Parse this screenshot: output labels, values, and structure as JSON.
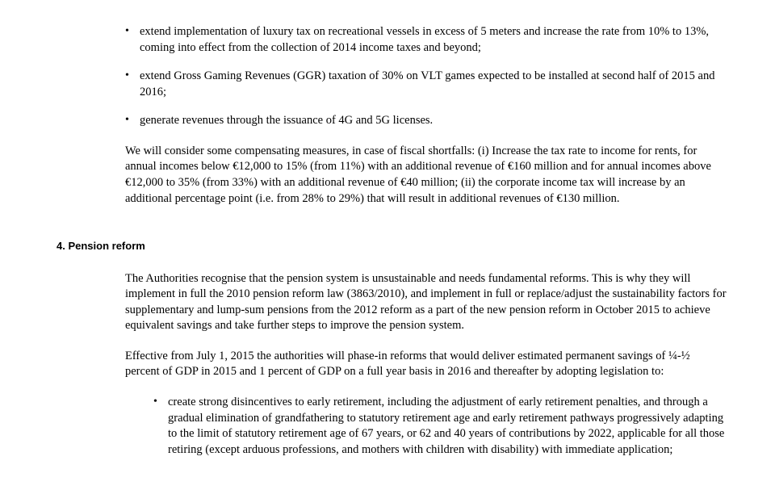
{
  "top_bullets": [
    "extend implementation of luxury tax on recreational vessels in excess of 5 meters and increase the rate from 10% to 13%, coming into effect from the collection of 2014 income taxes and beyond;",
    "extend Gross Gaming Revenues (GGR) taxation of 30% on VLT games expected to be installed at second half of 2015 and 2016;",
    "generate revenues through the issuance of 4G and 5G licenses."
  ],
  "compensating_para": "We will consider some compensating measures, in case of fiscal shortfalls: (i) Increase the tax rate to income for rents, for annual incomes below €12,000 to 15% (from 11%) with an additional revenue of €160 million and for annual incomes above €12,000 to 35% (from 33%) with an additional revenue of €40 million; (ii)  the corporate income tax will increase by an additional percentage point (i.e. from 28% to 29%) that will result in additional revenues of €130 million.",
  "section4": {
    "heading": "4. Pension reform",
    "para1": "The Authorities recognise that the pension system is unsustainable and needs fundamental reforms. This is why they will implement in full the 2010 pension reform law (3863/2010), and implement in full or replace/adjust the sustainability factors for supplementary and lump-sum pensions from the 2012 reform as a part of the new pension reform in October 2015 to achieve equivalent savings and take further steps to improve the pension system.",
    "para2": "Effective from July 1, 2015 the authorities will phase-in reforms that would deliver estimated permanent savings of ¼-½ percent of GDP in 2015 and 1 percent of GDP on a full year basis in 2016 and thereafter by adopting legislation to:",
    "bullets": [
      "create strong disincentives to early retirement, including the adjustment of early retirement penalties, and through a gradual elimination of grandfathering to statutory retirement age and early retirement pathways progressively adapting to the limit of statutory retirement age of 67 years, or 62 and 40 years of contributions by 2022, applicable for all those retiring (except arduous professions, and mothers with children with disability) with immediate application;"
    ]
  }
}
